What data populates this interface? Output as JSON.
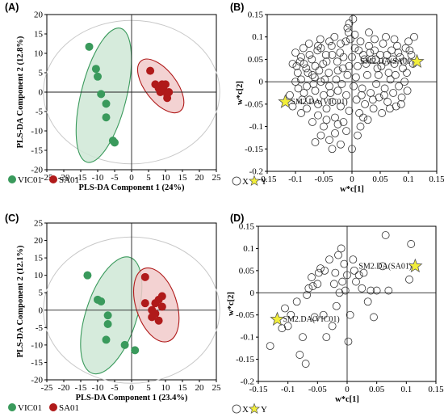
{
  "chart_data": [
    {
      "type": "scatter",
      "panel_label": "(A)",
      "xlabel": "PLS-DA Component 1 (24%)",
      "ylabel": "PLS-DA Component 2 (12.8%)",
      "xlim": [
        -25,
        25
      ],
      "ylim": [
        -20,
        20
      ],
      "xticks": [
        "-25",
        "-20",
        "-15",
        "-10",
        "-5",
        "0",
        "5",
        "10",
        "15",
        "20",
        "25"
      ],
      "yticks": [
        "20",
        "15",
        "10",
        "5",
        "0",
        "-5",
        "-10",
        "-15",
        "-20"
      ],
      "legend": [
        "VIC01",
        "SA01"
      ],
      "colors": {
        "VIC01": "#3a9a5c",
        "SA01": "#b01a1a",
        "VIC01_ellipse": "#cfe8d6",
        "SA01_ellipse": "#f1caca"
      },
      "series": [
        {
          "name": "VIC01",
          "points": [
            [
              -12.5,
              11.7
            ],
            [
              -10.5,
              6
            ],
            [
              -10,
              4
            ],
            [
              -9,
              -0.5
            ],
            [
              -7.5,
              -3
            ],
            [
              -7.5,
              -6.5
            ],
            [
              -5.5,
              -12.5
            ],
            [
              -5,
              -13
            ]
          ]
        },
        {
          "name": "SA01",
          "points": [
            [
              5.5,
              5.5
            ],
            [
              7,
              2
            ],
            [
              8,
              1
            ],
            [
              9,
              2
            ],
            [
              10,
              2
            ],
            [
              9.5,
              0.5
            ],
            [
              10.5,
              -0.5
            ],
            [
              10.5,
              -1.5
            ],
            [
              8.5,
              0
            ],
            [
              11,
              0
            ]
          ]
        }
      ],
      "ellipses": [
        {
          "group": "VIC01",
          "cx": -8.2,
          "cy": -0.8,
          "rx": 6.7,
          "ry": 17.8,
          "angle_deg": 14
        },
        {
          "group": "SA01",
          "cx": 8.6,
          "cy": 1.6,
          "rx": 4.6,
          "ry": 8.2,
          "angle_deg": -38
        }
      ],
      "hotelling_ellipse": {
        "rx": 26,
        "ry": 18.5
      }
    },
    {
      "type": "scatter",
      "panel_label": "(B)",
      "xlabel": "w*c[1]",
      "ylabel": "w*c[2]",
      "xlim": [
        -0.15,
        0.15
      ],
      "ylim": [
        -0.2,
        0.15
      ],
      "xticks": [
        "-0.15",
        "-0.1",
        "-0.05",
        "0",
        "0.05",
        "0.1",
        "0.15"
      ],
      "yticks": [
        "0.15",
        "0.1",
        "0.05",
        "0",
        "-0.05",
        "-0.1",
        "-0.15",
        "-0.2"
      ],
      "legend": [
        "X",
        "Y"
      ],
      "star_color": "#f2ee3a",
      "y_points": [
        {
          "label": "SM2.DA(SA01)",
          "x": 0.115,
          "y": 0.045
        },
        {
          "label": "SM2.DA(VIC01)",
          "x": -0.118,
          "y": -0.045
        }
      ],
      "x_points": [
        [
          -0.105,
          0.04
        ],
        [
          -0.1,
          0.065
        ],
        [
          -0.096,
          0.02
        ],
        [
          -0.09,
          0.055
        ],
        [
          -0.086,
          0.075
        ],
        [
          -0.081,
          0.03
        ],
        [
          -0.076,
          0.085
        ],
        [
          -0.071,
          0.05
        ],
        [
          -0.066,
          0.01
        ],
        [
          -0.061,
          0.07
        ],
        [
          -0.056,
          0.095
        ],
        [
          -0.051,
          0.04
        ],
        [
          -0.046,
          0.06
        ],
        [
          -0.041,
          0.02
        ],
        [
          -0.036,
          0.08
        ],
        [
          -0.031,
          0.1
        ],
        [
          -0.026,
          0.045
        ],
        [
          -0.021,
          0.065
        ],
        [
          -0.016,
          0.03
        ],
        [
          -0.011,
          0.09
        ],
        [
          -0.006,
          0.11
        ],
        [
          0.0,
          0.055
        ],
        [
          0.005,
          0.075
        ],
        [
          0.01,
          0.035
        ],
        [
          0.015,
          0.09
        ],
        [
          0.02,
          0.06
        ],
        [
          0.025,
          0.04
        ],
        [
          0.03,
          0.08
        ],
        [
          0.035,
          0.05
        ],
        [
          0.04,
          0.07
        ],
        [
          0.045,
          0.03
        ],
        [
          0.05,
          0.06
        ],
        [
          0.055,
          0.085
        ],
        [
          0.06,
          0.045
        ],
        [
          0.065,
          0.02
        ],
        [
          0.07,
          0.07
        ],
        [
          0.075,
          0.04
        ],
        [
          0.08,
          0.08
        ],
        [
          0.085,
          0.055
        ],
        [
          0.09,
          0.03
        ],
        [
          0.095,
          0.075
        ],
        [
          0.1,
          0.09
        ],
        [
          0.105,
          0.06
        ],
        [
          0.11,
          0.1
        ],
        [
          -0.005,
          0.13
        ],
        [
          0.002,
          0.14
        ],
        [
          -0.008,
          0.12
        ],
        [
          0.005,
          0.105
        ],
        [
          -0.003,
          0.095
        ],
        [
          -0.1,
          0.0
        ],
        [
          -0.095,
          -0.015
        ],
        [
          -0.09,
          0.005
        ],
        [
          -0.085,
          -0.025
        ],
        [
          -0.08,
          -0.01
        ],
        [
          -0.075,
          -0.04
        ],
        [
          -0.07,
          0.015
        ],
        [
          -0.065,
          -0.02
        ],
        [
          -0.06,
          -0.05
        ],
        [
          -0.055,
          0.0
        ],
        [
          -0.05,
          -0.03
        ],
        [
          -0.045,
          -0.06
        ],
        [
          -0.04,
          -0.01
        ],
        [
          -0.035,
          -0.045
        ],
        [
          -0.03,
          -0.08
        ],
        [
          -0.025,
          -0.02
        ],
        [
          -0.02,
          -0.055
        ],
        [
          -0.015,
          -0.09
        ],
        [
          -0.01,
          -0.03
        ],
        [
          -0.005,
          -0.065
        ],
        [
          0.003,
          -0.01
        ],
        [
          0.008,
          -0.04
        ],
        [
          0.013,
          -0.07
        ],
        [
          0.018,
          -0.015
        ],
        [
          0.023,
          -0.05
        ],
        [
          0.028,
          -0.085
        ],
        [
          0.033,
          -0.025
        ],
        [
          0.038,
          -0.06
        ],
        [
          0.043,
          -0.005
        ],
        [
          0.048,
          -0.035
        ],
        [
          0.053,
          -0.07
        ],
        [
          0.058,
          -0.015
        ],
        [
          0.063,
          -0.045
        ],
        [
          0.068,
          0.005
        ],
        [
          0.073,
          -0.025
        ],
        [
          0.078,
          -0.055
        ],
        [
          0.083,
          -0.01
        ],
        [
          0.088,
          -0.035
        ],
        [
          0.093,
          0.0
        ],
        [
          0.098,
          -0.02
        ],
        [
          -0.11,
          -0.03
        ],
        [
          -0.105,
          -0.055
        ],
        [
          -0.09,
          -0.07
        ],
        [
          -0.07,
          -0.09
        ],
        [
          -0.05,
          -0.1
        ],
        [
          -0.04,
          -0.13
        ],
        [
          -0.03,
          -0.115
        ],
        [
          -0.02,
          -0.14
        ],
        [
          -0.01,
          -0.11
        ],
        [
          0.0,
          -0.15
        ],
        [
          0.01,
          -0.12
        ],
        [
          -0.055,
          -0.12
        ],
        [
          -0.065,
          -0.135
        ],
        [
          -0.035,
          -0.15
        ],
        [
          -0.025,
          -0.095
        ],
        [
          -0.045,
          -0.085
        ],
        [
          0.015,
          -0.1
        ],
        [
          0.02,
          -0.08
        ],
        [
          -0.06,
          -0.075
        ],
        [
          -0.08,
          -0.06
        ],
        [
          -0.085,
          0.04
        ],
        [
          -0.075,
          0.06
        ],
        [
          -0.065,
          0.035
        ],
        [
          -0.055,
          0.075
        ],
        [
          -0.045,
          0.045
        ],
        [
          -0.035,
          0.06
        ],
        [
          -0.025,
          0.025
        ],
        [
          -0.015,
          0.055
        ],
        [
          -0.005,
          0.035
        ],
        [
          0.012,
          0.07
        ],
        [
          0.022,
          0.05
        ],
        [
          0.032,
          0.065
        ],
        [
          0.042,
          0.05
        ],
        [
          0.052,
          0.035
        ],
        [
          0.062,
          0.06
        ],
        [
          0.072,
          0.05
        ],
        [
          0.082,
          0.065
        ],
        [
          0.092,
          0.045
        ],
        [
          0.102,
          0.07
        ],
        [
          0.108,
          0.04
        ],
        [
          -0.098,
          0.035
        ],
        [
          -0.092,
          0.045
        ],
        [
          -0.088,
          -0.04
        ],
        [
          -0.078,
          0.02
        ],
        [
          -0.068,
          -0.005
        ],
        [
          -0.058,
          0.025
        ],
        [
          -0.048,
          0.005
        ],
        [
          -0.038,
          -0.025
        ],
        [
          -0.028,
          0.005
        ],
        [
          -0.018,
          -0.005
        ],
        [
          -0.008,
          0.015
        ],
        [
          0.007,
          0.01
        ],
        [
          0.017,
          -0.03
        ],
        [
          0.027,
          0.015
        ],
        [
          0.037,
          -0.04
        ],
        [
          0.047,
          0.015
        ],
        [
          0.057,
          -0.03
        ],
        [
          0.067,
          -0.06
        ],
        [
          0.077,
          0.015
        ],
        [
          0.087,
          -0.05
        ],
        [
          0.097,
          0.02
        ],
        [
          0.04,
          0.095
        ],
        [
          0.03,
          0.11
        ],
        [
          0.06,
          0.1
        ],
        [
          0.075,
          0.095
        ],
        [
          -0.02,
          0.085
        ],
        [
          -0.04,
          0.09
        ],
        [
          -0.06,
          0.08
        ]
      ]
    },
    {
      "type": "scatter",
      "panel_label": "(C)",
      "xlabel": "PLS-DA Component 1 (23.4%)",
      "ylabel": "PLS-DA Component 2 (12.1%)",
      "xlim": [
        -25,
        25
      ],
      "ylim": [
        -20,
        25
      ],
      "xticks": [
        "-25",
        "-20",
        "-15",
        "-10",
        "-5",
        "0",
        "5",
        "10",
        "15",
        "20",
        "25"
      ],
      "yticks": [
        "25",
        "20",
        "15",
        "10",
        "5",
        "0",
        "-5",
        "-10",
        "-15",
        "-20"
      ],
      "legend": [
        "VIC01",
        "SA01"
      ],
      "colors": {
        "VIC01": "#3a9a5c",
        "SA01": "#b01a1a",
        "VIC01_ellipse": "#cfe8d6",
        "SA01_ellipse": "#f1caca"
      },
      "series": [
        {
          "name": "VIC01",
          "points": [
            [
              -13,
              10
            ],
            [
              -10,
              3
            ],
            [
              -9,
              2.5
            ],
            [
              -7,
              -1.5
            ],
            [
              -7,
              -4
            ],
            [
              -7.5,
              -8.5
            ],
            [
              -2,
              -10
            ],
            [
              1,
              -11.5
            ]
          ]
        },
        {
          "name": "SA01",
          "points": [
            [
              4,
              9.5
            ],
            [
              4,
              2
            ],
            [
              6,
              0
            ],
            [
              7,
              2
            ],
            [
              8,
              3
            ],
            [
              9,
              4
            ],
            [
              7,
              -1
            ],
            [
              6,
              -2
            ],
            [
              8,
              -3
            ],
            [
              9,
              1
            ]
          ]
        }
      ],
      "ellipses": [
        {
          "group": "VIC01",
          "cx": -6,
          "cy": -1.5,
          "rx": 7.5,
          "ry": 17.5,
          "angle_deg": 18
        },
        {
          "group": "SA01",
          "cx": 7.3,
          "cy": 1.5,
          "rx": 6,
          "ry": 11,
          "angle_deg": -18
        }
      ],
      "hotelling_ellipse": {
        "rx": 26,
        "ry": 21
      }
    },
    {
      "type": "scatter",
      "panel_label": "(D)",
      "xlabel": "w*c[1]",
      "ylabel": "w*c[2]",
      "xlim": [
        -0.15,
        0.15
      ],
      "ylim": [
        -0.2,
        0.15
      ],
      "xticks": [
        "-0.15",
        "-0.1",
        "-0.05",
        "0",
        "0.05",
        "0.1",
        "0.15"
      ],
      "yticks": [
        "0.15",
        "0.1",
        "0.05",
        "0",
        "-0.05",
        "-0.1",
        "-0.15",
        "-0.2"
      ],
      "legend": [
        "X",
        "Y"
      ],
      "star_color": "#f2ee3a",
      "y_points": [
        {
          "label": "SM2.DA(SA01)",
          "x": 0.115,
          "y": 0.06
        },
        {
          "label": "SM2.DA(VIC01)",
          "x": -0.118,
          "y": -0.06
        }
      ],
      "x_points": [
        [
          -0.13,
          -0.12
        ],
        [
          -0.11,
          -0.08
        ],
        [
          -0.105,
          -0.035
        ],
        [
          -0.1,
          -0.075
        ],
        [
          -0.095,
          -0.05
        ],
        [
          -0.085,
          -0.02
        ],
        [
          -0.08,
          -0.14
        ],
        [
          -0.075,
          -0.1
        ],
        [
          -0.07,
          -0.16
        ],
        [
          -0.065,
          0.01
        ],
        [
          -0.06,
          0.035
        ],
        [
          -0.055,
          -0.055
        ],
        [
          -0.05,
          0.02
        ],
        [
          -0.045,
          0.055
        ],
        [
          -0.04,
          -0.05
        ],
        [
          -0.035,
          -0.1
        ],
        [
          -0.03,
          0.075
        ],
        [
          -0.025,
          -0.075
        ],
        [
          -0.02,
          0.045
        ],
        [
          -0.015,
          0.085
        ],
        [
          -0.01,
          0.1
        ],
        [
          -0.005,
          0.065
        ],
        [
          0.0,
          0.04
        ],
        [
          0.005,
          -0.05
        ],
        [
          -0.008,
          0.025
        ],
        [
          0.002,
          -0.11
        ],
        [
          -0.013,
          0.0
        ],
        [
          -0.018,
          -0.03
        ],
        [
          0.01,
          0.075
        ],
        [
          0.015,
          0.025
        ],
        [
          0.02,
          0.04
        ],
        [
          0.025,
          0.01
        ],
        [
          0.035,
          -0.02
        ],
        [
          0.04,
          0.005
        ],
        [
          0.05,
          0.005
        ],
        [
          0.06,
          0.06
        ],
        [
          0.07,
          0.005
        ],
        [
          0.065,
          0.13
        ],
        [
          0.105,
          0.03
        ],
        [
          0.108,
          0.11
        ],
        [
          -0.038,
          0.05
        ],
        [
          -0.048,
          0.045
        ],
        [
          -0.058,
          0.015
        ],
        [
          -0.068,
          -0.005
        ],
        [
          0.045,
          -0.055
        ],
        [
          -0.003,
          0.005
        ],
        [
          0.012,
          0.05
        ],
        [
          -0.022,
          0.02
        ],
        [
          0.028,
          0.045
        ]
      ]
    }
  ]
}
